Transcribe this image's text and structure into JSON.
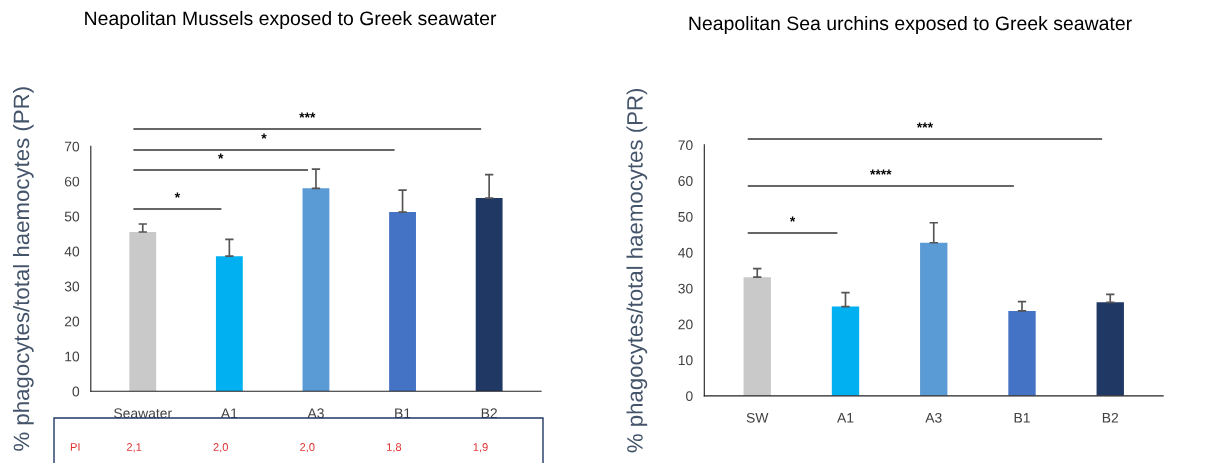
{
  "chart_data": [
    {
      "type": "bar",
      "title": "Neapolitan Mussels exposed to Greek seawater",
      "ylabel": "% phagocytes/total haemocytes (PR)",
      "categories": [
        "Seawater",
        "A1",
        "A3",
        "B1",
        "B2"
      ],
      "values": [
        45.5,
        38.6,
        58.0,
        51.2,
        55.2
      ],
      "errors": [
        [
          45.5,
          47.8
        ],
        [
          38.6,
          43.4
        ],
        [
          58.0,
          63.5
        ],
        [
          51.2,
          57.5
        ],
        [
          55.2,
          61.9
        ]
      ],
      "colors": [
        "#c9c9c9",
        "#00b0f0",
        "#5b9bd5",
        "#4472c4",
        "#1f3864"
      ],
      "ylim": [
        0,
        70
      ],
      "yticks": [
        0,
        10,
        20,
        30,
        40,
        50,
        60,
        70
      ],
      "grid": false,
      "annotations": [
        "*",
        "*",
        "*",
        "***",
        "PI",
        "2,1",
        "2,0",
        "2,0",
        "1,8",
        "1,9"
      ]
    },
    {
      "type": "bar",
      "title": "Neapolitan Sea urchins exposed to Greek seawater",
      "ylabel": "% phagocytes/total haemocytes (PR)",
      "categories": [
        "SW",
        "A1",
        "A3",
        "B1",
        "B2"
      ],
      "values": [
        33.1,
        24.9,
        42.7,
        23.7,
        26.1
      ],
      "errors": [
        [
          33.1,
          35.5
        ],
        [
          24.9,
          28.8
        ],
        [
          42.7,
          48.3
        ],
        [
          23.7,
          26.3
        ],
        [
          26.1,
          28.3
        ]
      ],
      "colors": [
        "#c9c9c9",
        "#00b0f0",
        "#5b9bd5",
        "#4472c4",
        "#1f3864"
      ],
      "ylim": [
        0,
        70
      ],
      "yticks": [
        0,
        10,
        20,
        30,
        40,
        50,
        60,
        70
      ],
      "grid": false,
      "annotations": [
        "*",
        "****",
        "***"
      ]
    }
  ]
}
